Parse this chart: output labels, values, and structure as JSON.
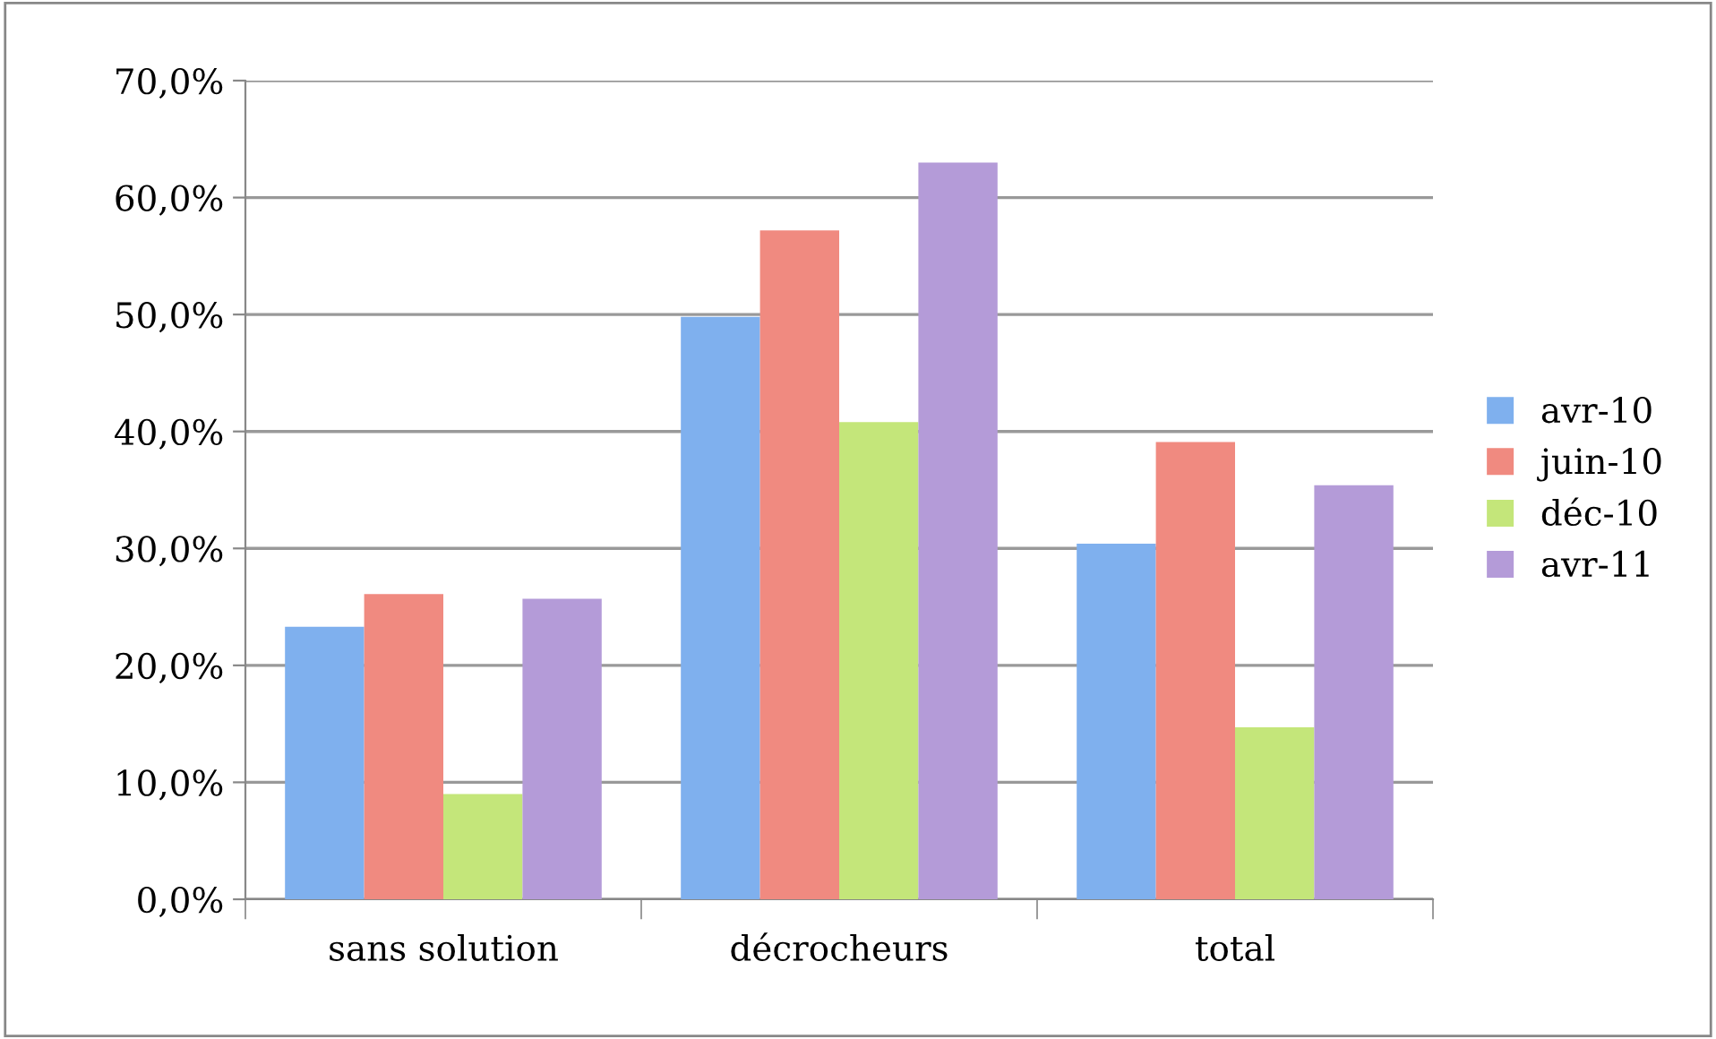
{
  "chart_data": {
    "type": "bar",
    "categories": [
      "sans solution",
      "décrocheurs",
      "total"
    ],
    "series": [
      {
        "name": "avr-10",
        "color": "#7fb0ee",
        "values": [
          23.3,
          49.8,
          30.4
        ]
      },
      {
        "name": "juin-10",
        "color": "#f08a80",
        "values": [
          26.1,
          57.2,
          39.1
        ]
      },
      {
        "name": "déc-10",
        "color": "#c4e67a",
        "values": [
          9.0,
          40.8,
          14.7
        ]
      },
      {
        "name": "avr-11",
        "color": "#b49bd8",
        "values": [
          25.7,
          63.0,
          35.4
        ]
      }
    ],
    "ylim": [
      0,
      70
    ],
    "yticks": [
      {
        "value": 0,
        "label": "0,0%"
      },
      {
        "value": 10,
        "label": "10,0%"
      },
      {
        "value": 20,
        "label": "20,0%"
      },
      {
        "value": 30,
        "label": "30,0%"
      },
      {
        "value": 40,
        "label": "40,0%"
      },
      {
        "value": 50,
        "label": "50,0%"
      },
      {
        "value": 60,
        "label": "60,0%"
      },
      {
        "value": 70,
        "label": "70,0%"
      }
    ],
    "grid": "y",
    "legend": "right"
  }
}
